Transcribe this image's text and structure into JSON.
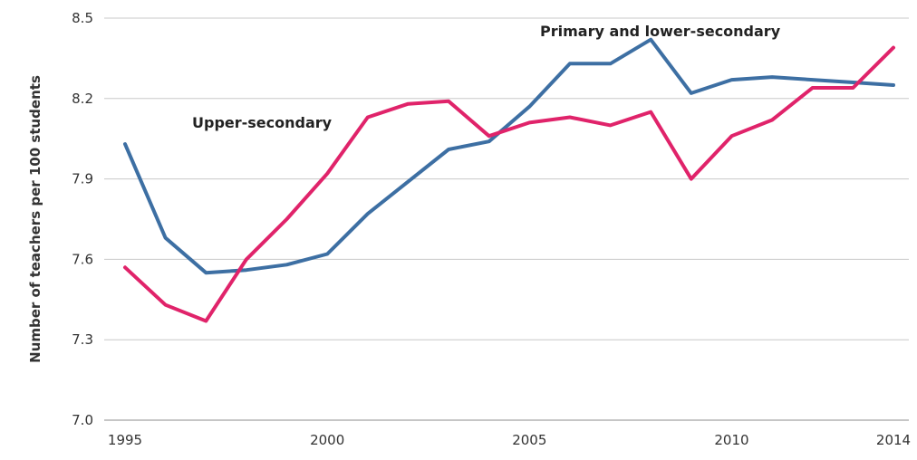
{
  "chart_data": {
    "type": "line",
    "title": "",
    "xlabel": "",
    "ylabel": "Number of teachers per 100 students",
    "x": [
      1995,
      1996,
      1997,
      1998,
      1999,
      2000,
      2001,
      2002,
      2003,
      2004,
      2005,
      2006,
      2007,
      2008,
      2009,
      2010,
      2011,
      2012,
      2013,
      2014
    ],
    "x_ticks": [
      1995,
      2000,
      2005,
      2010,
      2014
    ],
    "x_tick_labels": [
      "1995",
      "2000",
      "2005",
      "2010",
      "2014"
    ],
    "y_ticks": [
      7.0,
      7.3,
      7.6,
      7.9,
      8.2,
      8.5
    ],
    "y_tick_labels": [
      "7.0",
      "7.3",
      "7.6",
      "7.9",
      "8.2",
      "8.5"
    ],
    "xlim": [
      1995,
      2014
    ],
    "ylim": [
      7.0,
      8.5
    ],
    "grid": "horizontal",
    "series": [
      {
        "name": "Primary and lower-secondary",
        "color": "#3d6fa3",
        "values": [
          8.03,
          7.68,
          7.55,
          7.56,
          7.58,
          7.62,
          7.77,
          7.89,
          8.01,
          8.04,
          8.17,
          8.33,
          8.33,
          8.42,
          8.22,
          8.27,
          8.28,
          8.27,
          8.26,
          8.25
        ]
      },
      {
        "name": "Upper-secondary",
        "color": "#e0236a",
        "values": [
          7.57,
          7.43,
          7.37,
          7.6,
          7.75,
          7.92,
          8.13,
          8.18,
          8.19,
          8.06,
          8.11,
          8.13,
          8.1,
          8.15,
          7.9,
          8.06,
          8.12,
          8.24,
          8.24,
          8.39
        ]
      }
    ]
  }
}
